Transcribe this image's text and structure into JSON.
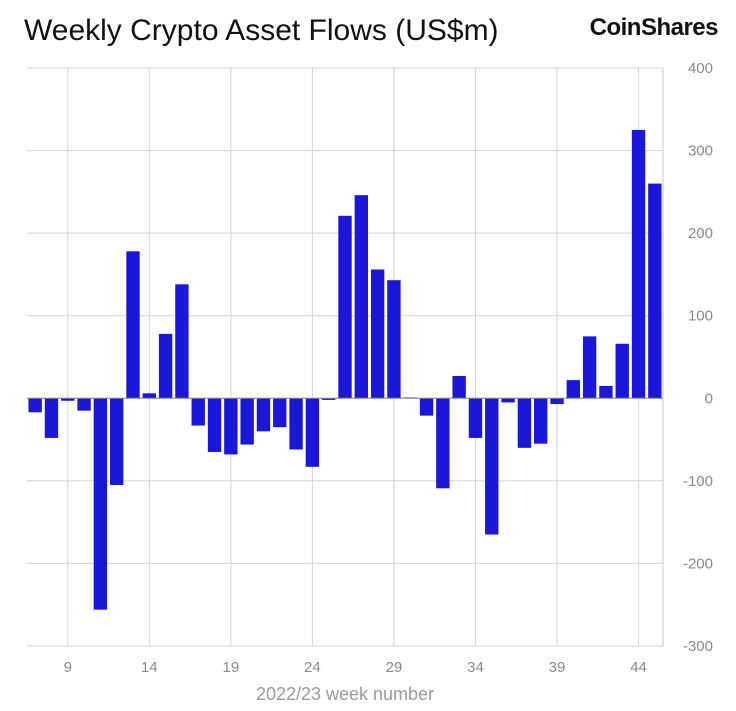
{
  "header": {
    "title": "Weekly Crypto Asset Flows (US$m)",
    "brand": "CoinShares"
  },
  "chart_data": {
    "type": "bar",
    "title": "Weekly Crypto Asset Flows (US$m)",
    "xlabel": "2022/23 week number",
    "ylabel": "",
    "ylim": [
      -300,
      400
    ],
    "yticks": [
      -300,
      -200,
      -100,
      0,
      100,
      200,
      300,
      400
    ],
    "xtick_labels": [
      9,
      14,
      19,
      24,
      29,
      34,
      39,
      44
    ],
    "grid": "vertical at labeled weeks, horizontal at y ticks",
    "bar_color": "#1a17d8",
    "categories": [
      7,
      8,
      9,
      10,
      11,
      12,
      13,
      14,
      15,
      16,
      17,
      18,
      19,
      20,
      21,
      22,
      23,
      24,
      25,
      26,
      27,
      28,
      29,
      30,
      31,
      32,
      33,
      34,
      35,
      36,
      37,
      38,
      39,
      40,
      41,
      42,
      43,
      44,
      45
    ],
    "values": [
      -17,
      -48,
      -3,
      -15,
      -256,
      -105,
      178,
      6,
      78,
      138,
      -33,
      -65,
      -68,
      -56,
      -40,
      -35,
      -62,
      -83,
      -2,
      221,
      246,
      156,
      143,
      1,
      -21,
      -109,
      27,
      -48,
      -165,
      -5,
      -60,
      -55,
      -7,
      22,
      75,
      15,
      66,
      325,
      260
    ]
  }
}
